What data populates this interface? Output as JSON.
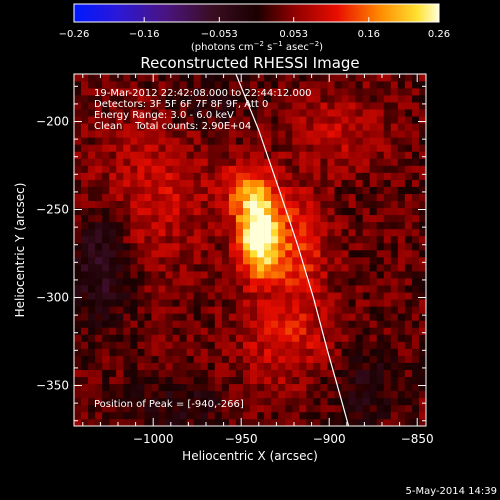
{
  "chart_data": {
    "type": "heatmap",
    "title": "Reconstructed RHESSI Image",
    "info_lines": [
      "19-Mar-2012 22:42:08.000 to 22:44:12.000",
      "Detectors: 3F 5F 6F 7F 8F 9F, Att 0",
      "Energy Range: 3.0 - 6.0 keV",
      "Clean    Total counts: 2.90E+04"
    ],
    "peak_label": "Position of Peak = [-940,-266]",
    "peak": {
      "x": -940,
      "y": -266
    },
    "xlabel": "Heliocentric X (arcsec)",
    "ylabel": "Heliocentric Y (arcsec)",
    "xlim": [
      -1045,
      -845
    ],
    "ylim": [
      -373,
      -173
    ],
    "xticks": [
      {
        "value": -1000,
        "label": "−1000"
      },
      {
        "value": -950,
        "label": "−950"
      },
      {
        "value": -900,
        "label": "−900"
      },
      {
        "value": -850,
        "label": "−850"
      }
    ],
    "yticks": [
      {
        "value": -200,
        "label": "−200"
      },
      {
        "value": -250,
        "label": "−250"
      },
      {
        "value": -300,
        "label": "−300"
      },
      {
        "value": -350,
        "label": "−350"
      }
    ],
    "colorbar": {
      "range": [
        -0.26,
        0.26
      ],
      "units_text": "(photons cm",
      "units_exp1": "−2",
      "units_mid": " s",
      "units_exp2": "−1",
      "units_mid2": " asec",
      "units_exp3": "−2",
      "units_end": ")",
      "ticks": [
        {
          "value": -0.26,
          "label": "−0.26"
        },
        {
          "value": -0.16,
          "label": "−0.16"
        },
        {
          "value": -0.053,
          "label": "−0.053"
        },
        {
          "value": 0.053,
          "label": "0.053"
        },
        {
          "value": 0.16,
          "label": "0.16"
        },
        {
          "value": 0.26,
          "label": "0.26"
        }
      ]
    },
    "sources": [
      {
        "x": -940,
        "y": -266,
        "amp": 0.26,
        "sx": 8,
        "sy": 15
      },
      {
        "x": -945,
        "y": -240,
        "amp": 0.12,
        "sx": 10,
        "sy": 12
      },
      {
        "x": -918,
        "y": -272,
        "amp": 0.1,
        "sx": 12,
        "sy": 22
      },
      {
        "x": -1000,
        "y": -240,
        "amp": 0.06,
        "sx": 25,
        "sy": 30
      },
      {
        "x": -925,
        "y": -325,
        "amp": 0.07,
        "sx": 20,
        "sy": 18
      },
      {
        "x": -895,
        "y": -205,
        "amp": 0.05,
        "sx": 20,
        "sy": 15
      },
      {
        "x": -1030,
        "y": -280,
        "amp": -0.09,
        "sx": 12,
        "sy": 22
      },
      {
        "x": -985,
        "y": -360,
        "amp": -0.05,
        "sx": 18,
        "sy": 10
      },
      {
        "x": -880,
        "y": -350,
        "amp": -0.05,
        "sx": 15,
        "sy": 15
      },
      {
        "x": -970,
        "y": -190,
        "amp": -0.04,
        "sx": 15,
        "sy": 12
      }
    ],
    "limb_curve": {
      "x": [
        -953,
        -940,
        -928,
        -918,
        -909,
        -901,
        -894,
        -889
      ],
      "y": [
        -173,
        -205,
        -240,
        -270,
        -300,
        -330,
        -355,
        -373
      ]
    }
  },
  "footer_date": "5-May-2014 14:39"
}
